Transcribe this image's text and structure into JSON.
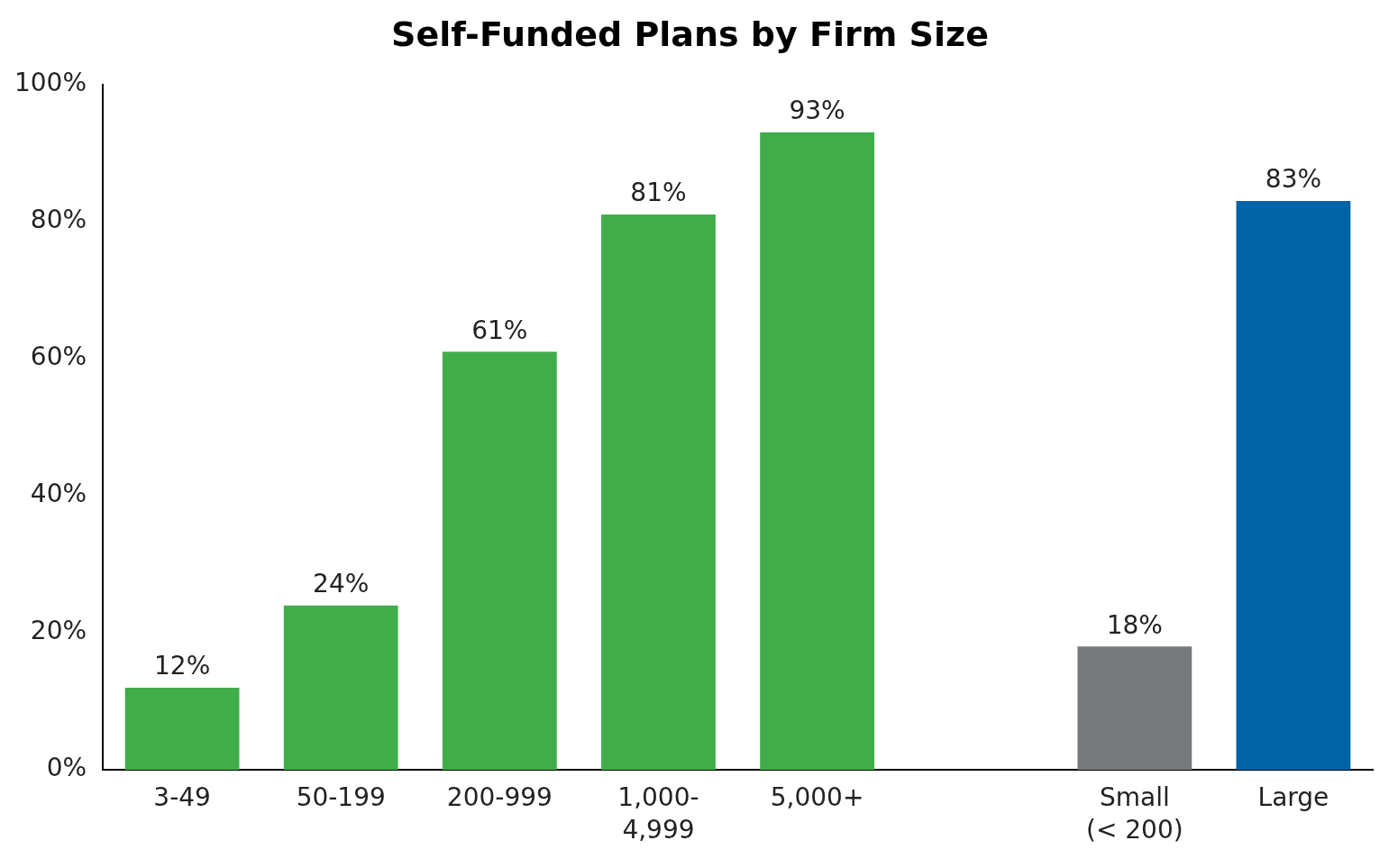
{
  "chart_data": {
    "type": "bar",
    "title": "Self-Funded Plans by Firm Size",
    "categories": [
      "3-49",
      "50-199",
      "200-999",
      "1,000-\n4,999",
      "5,000+",
      null,
      "Small\n(< 200)",
      "Large"
    ],
    "values": [
      12,
      24,
      61,
      81,
      93,
      null,
      18,
      83
    ],
    "colors": [
      "#41ad4a",
      "#41ad4a",
      "#41ad4a",
      "#41ad4a",
      "#41ad4a",
      "#41ad4a",
      "#77787b",
      "#0063a5"
    ],
    "value_labels": [
      "12%",
      "24%",
      "61%",
      "81%",
      "93%",
      null,
      "18%",
      "83%"
    ],
    "ylim": [
      0,
      100
    ],
    "yticks": [
      {
        "value": 0,
        "label": "0%"
      },
      {
        "value": 20,
        "label": "20%"
      },
      {
        "value": 40,
        "label": "40%"
      },
      {
        "value": 60,
        "label": "60%"
      },
      {
        "value": 80,
        "label": "80%"
      },
      {
        "value": 100,
        "label": "100%"
      }
    ],
    "grid": false,
    "legend": false
  }
}
